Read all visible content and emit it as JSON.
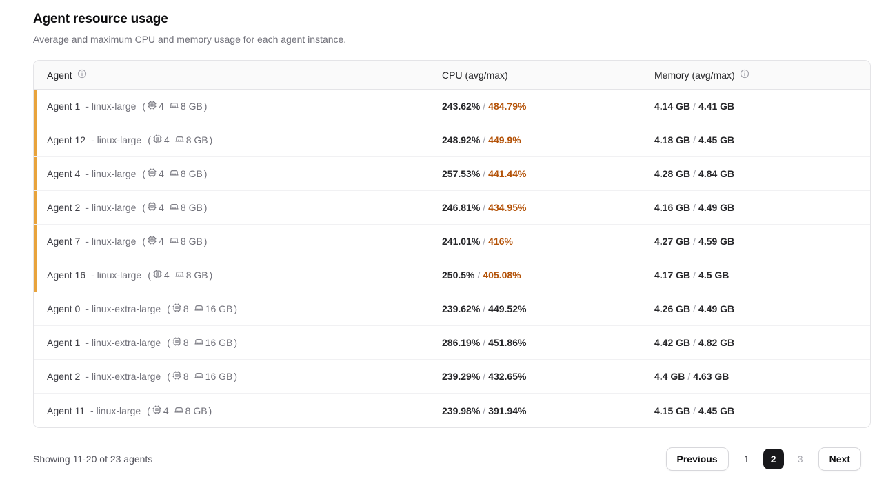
{
  "page": {
    "title": "Agent resource usage",
    "subtitle": "Average and maximum CPU and memory usage for each agent instance."
  },
  "table": {
    "columns": {
      "agent": "Agent",
      "cpu": "CPU (avg/max)",
      "memory": "Memory (avg/max)"
    },
    "dash": "-",
    "specs_open": "(",
    "specs_close": ")",
    "value_separator": "/",
    "rows": [
      {
        "name": "Agent 1",
        "type": "linux-large",
        "cpus": "4",
        "mem": "8 GB",
        "cpu_avg": "243.62%",
        "cpu_max": "484.79%",
        "cpu_max_hot": true,
        "mem_avg": "4.14 GB",
        "mem_max": "4.41 GB",
        "flagged": true
      },
      {
        "name": "Agent 12",
        "type": "linux-large",
        "cpus": "4",
        "mem": "8 GB",
        "cpu_avg": "248.92%",
        "cpu_max": "449.9%",
        "cpu_max_hot": true,
        "mem_avg": "4.18 GB",
        "mem_max": "4.45 GB",
        "flagged": true
      },
      {
        "name": "Agent 4",
        "type": "linux-large",
        "cpus": "4",
        "mem": "8 GB",
        "cpu_avg": "257.53%",
        "cpu_max": "441.44%",
        "cpu_max_hot": true,
        "mem_avg": "4.28 GB",
        "mem_max": "4.84 GB",
        "flagged": true
      },
      {
        "name": "Agent 2",
        "type": "linux-large",
        "cpus": "4",
        "mem": "8 GB",
        "cpu_avg": "246.81%",
        "cpu_max": "434.95%",
        "cpu_max_hot": true,
        "mem_avg": "4.16 GB",
        "mem_max": "4.49 GB",
        "flagged": true
      },
      {
        "name": "Agent 7",
        "type": "linux-large",
        "cpus": "4",
        "mem": "8 GB",
        "cpu_avg": "241.01%",
        "cpu_max": "416%",
        "cpu_max_hot": true,
        "mem_avg": "4.27 GB",
        "mem_max": "4.59 GB",
        "flagged": true
      },
      {
        "name": "Agent 16",
        "type": "linux-large",
        "cpus": "4",
        "mem": "8 GB",
        "cpu_avg": "250.5%",
        "cpu_max": "405.08%",
        "cpu_max_hot": true,
        "mem_avg": "4.17 GB",
        "mem_max": "4.5 GB",
        "flagged": true
      },
      {
        "name": "Agent 0",
        "type": "linux-extra-large",
        "cpus": "8",
        "mem": "16 GB",
        "cpu_avg": "239.62%",
        "cpu_max": "449.52%",
        "cpu_max_hot": false,
        "mem_avg": "4.26 GB",
        "mem_max": "4.49 GB",
        "flagged": false
      },
      {
        "name": "Agent 1",
        "type": "linux-extra-large",
        "cpus": "8",
        "mem": "16 GB",
        "cpu_avg": "286.19%",
        "cpu_max": "451.86%",
        "cpu_max_hot": false,
        "mem_avg": "4.42 GB",
        "mem_max": "4.82 GB",
        "flagged": false
      },
      {
        "name": "Agent 2",
        "type": "linux-extra-large",
        "cpus": "8",
        "mem": "16 GB",
        "cpu_avg": "239.29%",
        "cpu_max": "432.65%",
        "cpu_max_hot": false,
        "mem_avg": "4.4 GB",
        "mem_max": "4.63 GB",
        "flagged": false
      },
      {
        "name": "Agent 11",
        "type": "linux-large",
        "cpus": "4",
        "mem": "8 GB",
        "cpu_avg": "239.98%",
        "cpu_max": "391.94%",
        "cpu_max_hot": false,
        "mem_avg": "4.15 GB",
        "mem_max": "4.45 GB",
        "flagged": false
      }
    ]
  },
  "footer": {
    "showing": "Showing 11-20 of 23 agents",
    "previous_label": "Previous",
    "next_label": "Next",
    "pages": [
      {
        "label": "1",
        "active": false,
        "muted": false
      },
      {
        "label": "2",
        "active": true,
        "muted": false
      },
      {
        "label": "3",
        "active": false,
        "muted": true
      }
    ]
  },
  "icons": {
    "agent_header": "info-icon",
    "memory_header": "info-icon",
    "specs_cpu": "cpu-chip-icon",
    "specs_memory": "memory-icon"
  },
  "colors": {
    "accent_bar": "#E8A33C",
    "cpu_max_hot": "#B45309",
    "active_page_bg": "#18181B"
  }
}
